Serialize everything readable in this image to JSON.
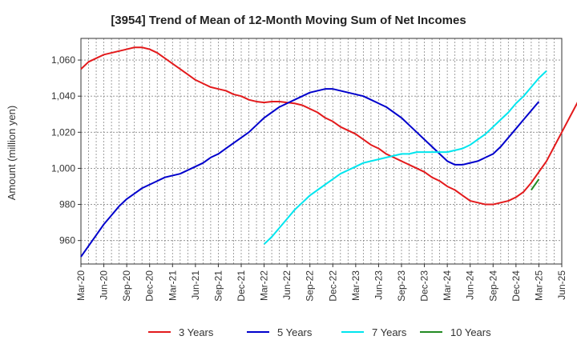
{
  "chart_data": {
    "type": "line",
    "title": "[3954]  Trend of Mean of 12-Month Moving Sum of Net Incomes",
    "ylabel": "Amount (million yen)",
    "xlabel": "",
    "x_ticks": [
      "Mar-20",
      "Jun-20",
      "Sep-20",
      "Dec-20",
      "Mar-21",
      "Jun-21",
      "Sep-21",
      "Dec-21",
      "Mar-22",
      "Jun-22",
      "Sep-22",
      "Dec-22",
      "Mar-23",
      "Jun-23",
      "Sep-23",
      "Dec-23",
      "Mar-24",
      "Jun-24",
      "Sep-24",
      "Dec-24",
      "Mar-25",
      "Jun-25"
    ],
    "y_ticks": [
      960,
      980,
      1000,
      1020,
      1040,
      1060
    ],
    "ylim": [
      947,
      1072
    ],
    "grid": true,
    "legend_position": "bottom",
    "series": [
      {
        "name": "3 Years",
        "color": "#e31a1c",
        "values": [
          1055,
          1059,
          1061,
          1063,
          1064,
          1065,
          1066,
          1067,
          1067,
          1066,
          1064,
          1061,
          1058,
          1055,
          1052,
          1049,
          1047,
          1045,
          1044,
          1043,
          1041,
          1040,
          1038,
          1037,
          1036.5,
          1037,
          1037,
          1036.5,
          1036,
          1035,
          1033,
          1031,
          1028,
          1026,
          1023,
          1021,
          1019,
          1016,
          1013,
          1011,
          1008,
          1006,
          1004,
          1002,
          1000,
          998,
          995,
          993,
          990,
          988,
          985,
          982,
          981,
          980,
          980,
          981,
          982,
          984,
          987,
          992,
          998,
          1004,
          1012,
          1020,
          1028,
          1036,
          1044,
          1051,
          1058,
          1064
        ],
        "start_index": 0
      },
      {
        "name": "5 Years",
        "color": "#0000cc",
        "values": [
          951,
          957,
          963,
          969,
          974,
          979,
          983,
          986,
          989,
          991,
          993,
          995,
          996,
          997,
          999,
          1001,
          1003,
          1006,
          1008,
          1011,
          1014,
          1017,
          1020,
          1024,
          1028,
          1031,
          1034,
          1036,
          1038,
          1040,
          1042,
          1043,
          1044,
          1044,
          1043,
          1042,
          1041,
          1040,
          1038,
          1036,
          1034,
          1031,
          1028,
          1024,
          1020,
          1016,
          1012,
          1008,
          1004,
          1002,
          1002,
          1003,
          1004,
          1006,
          1008,
          1012,
          1017,
          1022,
          1027,
          1032,
          1037
        ],
        "start_index": 0
      },
      {
        "name": "7 Years",
        "color": "#00e5ee",
        "values": [
          958,
          962,
          967,
          972,
          977,
          981,
          985,
          988,
          991,
          994,
          997,
          999,
          1001,
          1003,
          1004,
          1005,
          1006,
          1007,
          1008,
          1008,
          1009,
          1009,
          1009,
          1009,
          1009,
          1010,
          1011,
          1013,
          1016,
          1019,
          1023,
          1027,
          1031,
          1036,
          1040,
          1045,
          1050,
          1054
        ],
        "start_index": 24
      },
      {
        "name": "10 Years",
        "color": "#228b22",
        "values": [
          988,
          994
        ],
        "start_index": 59
      }
    ]
  }
}
